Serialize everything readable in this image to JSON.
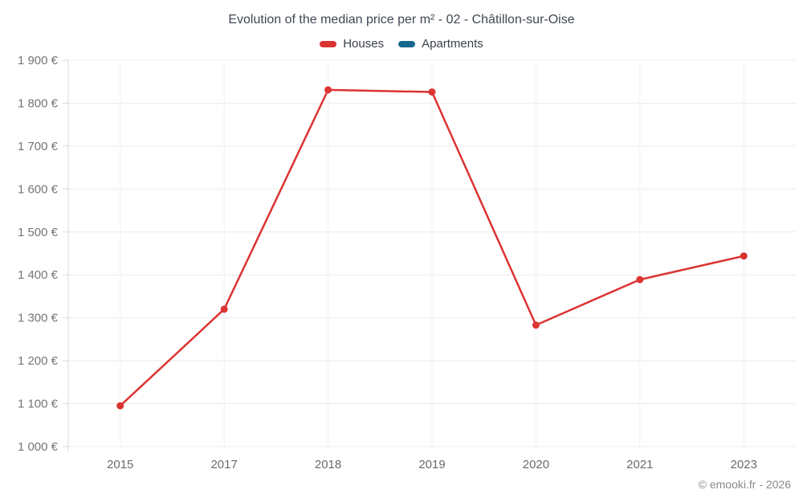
{
  "header": {
    "title": "Evolution of the median price per m² - 02 - Châtillon-sur-Oise"
  },
  "legend": [
    {
      "label": "Houses",
      "color": "#db3432"
    },
    {
      "label": "Apartments",
      "color": "#16688f"
    }
  ],
  "footer": {
    "credit": "© emooki.fr - 2026"
  },
  "colors": {
    "houses": "#db3432",
    "apartments": "#16688f",
    "grid_h": "#ececec",
    "grid_v": "#f1f1f1",
    "axis": "#d9d9d9",
    "ytick_text": "#757575",
    "xtick_text": "#6b6b6b"
  },
  "chart_data": {
    "type": "line",
    "title": "Evolution of the median price per m² - 02 - Châtillon-sur-Oise",
    "xlabel": "",
    "ylabel": "",
    "categories": [
      "2015",
      "2017",
      "2018",
      "2019",
      "2020",
      "2021",
      "2023"
    ],
    "series": [
      {
        "name": "Houses",
        "color": "#db3432",
        "values": [
          1095,
          1320,
          1831,
          1826,
          1283,
          1389,
          1444
        ]
      },
      {
        "name": "Apartments",
        "color": "#16688f",
        "values": []
      }
    ],
    "ylim": [
      1000,
      1900
    ],
    "ytick_step": 100,
    "ytick_suffix": " €",
    "grid": true,
    "legend_position": "top"
  }
}
